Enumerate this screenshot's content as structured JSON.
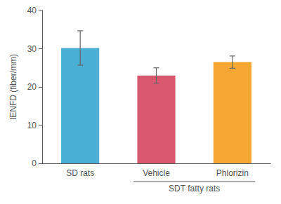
{
  "chart_data": {
    "type": "bar",
    "categories": [
      "SD rats",
      "Vehicle",
      "Phlorizin"
    ],
    "values": [
      30.2,
      23.0,
      26.5
    ],
    "errors": [
      4.5,
      2.0,
      1.6
    ],
    "colors": [
      "#4AAED5",
      "#D95870",
      "#F5A733"
    ],
    "ylabel": "IENFD (fiber/mm)",
    "ylim": [
      0,
      40
    ],
    "yticks": [
      0,
      10,
      20,
      30,
      40
    ],
    "grid": false,
    "annotations": [
      {
        "text": "SDT fatty rats",
        "span": [
          "Vehicle",
          "Phlorizin"
        ]
      }
    ]
  }
}
